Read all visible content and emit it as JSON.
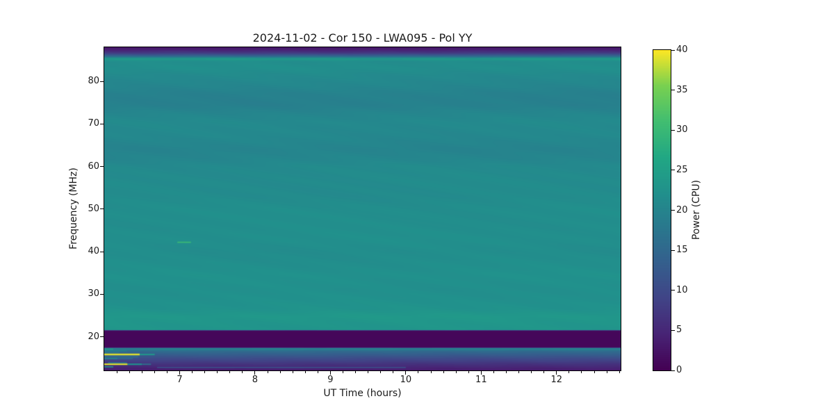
{
  "chart_data": {
    "type": "heatmap",
    "title": "2024-11-02 - Cor 150 - LWA095 - Pol YY",
    "xlabel": "UT Time (hours)",
    "ylabel": "Frequency (MHz)",
    "colorbar_label": "Power (CPU)",
    "colormap": "viridis",
    "x_range": [
      6.0,
      12.85
    ],
    "x_ticks": [
      7,
      8,
      9,
      10,
      11,
      12
    ],
    "x_minor_tick_step": 0.166667,
    "y_range": [
      12.1,
      88.0
    ],
    "y_ticks": [
      20,
      30,
      40,
      50,
      60,
      70,
      80
    ],
    "colorbar_range": [
      0,
      40
    ],
    "colorbar_ticks": [
      0,
      5,
      10,
      15,
      20,
      25,
      30,
      35,
      40
    ],
    "colors": {
      "viridis_min": "#440154",
      "viridis_mid": "#21918c",
      "viridis_max": "#fde725",
      "axis_text": "#1a1a1a",
      "background": "#ffffff"
    },
    "freq_profile": [
      [
        88.0,
        2.5
      ],
      [
        87.4,
        4.0
      ],
      [
        86.6,
        8.0
      ],
      [
        85.9,
        15.0
      ],
      [
        85.3,
        23.8
      ],
      [
        84.6,
        21.5
      ],
      [
        83.0,
        21.8
      ],
      [
        81.5,
        21.0
      ],
      [
        79.0,
        20.3
      ],
      [
        77.0,
        19.4
      ],
      [
        74.5,
        19.2
      ],
      [
        72.5,
        20.2
      ],
      [
        70.5,
        20.9
      ],
      [
        67.0,
        20.6
      ],
      [
        64.0,
        19.8
      ],
      [
        61.5,
        20.4
      ],
      [
        60.0,
        21.0
      ],
      [
        57.0,
        21.2
      ],
      [
        53.0,
        21.2
      ],
      [
        50.0,
        21.7
      ],
      [
        46.0,
        21.7
      ],
      [
        43.0,
        21.9
      ],
      [
        40.0,
        21.5
      ],
      [
        37.0,
        21.8
      ],
      [
        34.5,
        22.2
      ],
      [
        31.0,
        21.9
      ],
      [
        28.5,
        22.2
      ],
      [
        26.5,
        22.5
      ],
      [
        24.8,
        23.6
      ],
      [
        23.2,
        23.1
      ],
      [
        21.6,
        22.9
      ],
      [
        21.45,
        0.8
      ],
      [
        17.5,
        0.8
      ],
      [
        17.3,
        20.5
      ],
      [
        16.6,
        15.5
      ],
      [
        15.8,
        13.0
      ],
      [
        14.8,
        9.8
      ],
      [
        13.7,
        6.8
      ],
      [
        12.8,
        4.8
      ],
      [
        12.1,
        3.2
      ]
    ],
    "features": [
      {
        "name": "narrowband-burst",
        "freq": 42.2,
        "df": 0.3,
        "t0": 6.97,
        "t1": 7.15,
        "power": 30
      },
      {
        "name": "rfi-line",
        "freq": 17.1,
        "df": 0.35,
        "t0": 6.0,
        "t1": 6.12,
        "power": 24
      },
      {
        "name": "rfi-line",
        "freq": 16.7,
        "df": 0.3,
        "t0": 6.0,
        "t1": 6.3,
        "power": 19
      },
      {
        "name": "rfi-line",
        "freq": 16.3,
        "df": 0.3,
        "t0": 6.0,
        "t1": 6.2,
        "power": 17
      },
      {
        "name": "rfi-line-bright",
        "freq": 15.85,
        "df": 0.4,
        "t0": 6.0,
        "t1": 6.47,
        "power": 39
      },
      {
        "name": "rfi-line",
        "freq": 15.85,
        "df": 0.35,
        "t0": 6.47,
        "t1": 6.67,
        "power": 23
      },
      {
        "name": "rfi-line",
        "freq": 15.3,
        "df": 0.5,
        "t0": 6.0,
        "t1": 6.45,
        "power": 14.5
      },
      {
        "name": "rfi-line",
        "freq": 14.9,
        "df": 0.3,
        "t0": 6.0,
        "t1": 6.18,
        "power": 20
      },
      {
        "name": "rfi-line",
        "freq": 14.9,
        "df": 0.3,
        "t0": 6.18,
        "t1": 6.38,
        "power": 15
      },
      {
        "name": "rfi-line",
        "freq": 13.9,
        "df": 0.3,
        "t0": 6.05,
        "t1": 6.3,
        "power": 16
      },
      {
        "name": "rfi-line-bright",
        "freq": 13.55,
        "df": 0.35,
        "t0": 6.0,
        "t1": 6.31,
        "power": 39
      },
      {
        "name": "rfi-line",
        "freq": 13.55,
        "df": 0.35,
        "t0": 6.31,
        "t1": 6.5,
        "power": 22
      },
      {
        "name": "rfi-line",
        "freq": 13.55,
        "df": 0.3,
        "t0": 6.5,
        "t1": 6.62,
        "power": 16
      },
      {
        "name": "rfi-line",
        "freq": 12.95,
        "df": 0.3,
        "t0": 6.0,
        "t1": 6.12,
        "power": 21
      },
      {
        "name": "rfi-line-faint",
        "freq": 12.8,
        "df": 0.25,
        "t0": 6.7,
        "t1": 10.0,
        "power": 11.5
      }
    ]
  }
}
